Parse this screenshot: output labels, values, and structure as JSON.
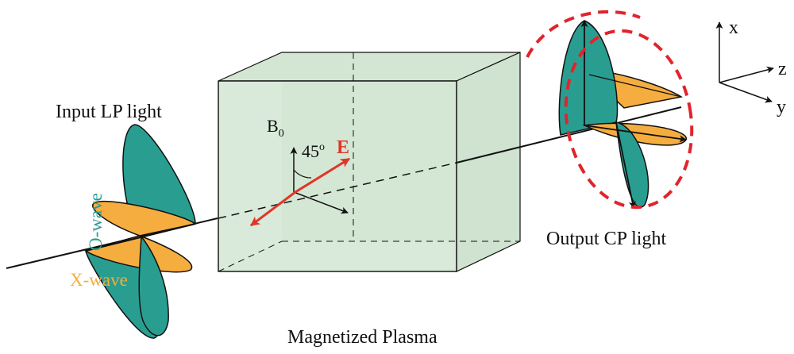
{
  "labels": {
    "input": "Input LP light",
    "output": "Output CP light",
    "plasma": "Magnetized Plasma",
    "o_wave": "O-wave",
    "x_wave": "X-wave",
    "b_field": "B",
    "b_sub": "0",
    "angle": "45",
    "angle_unit": "o",
    "e_field": "E",
    "axis_x": "x",
    "axis_y": "y",
    "axis_z": "z"
  },
  "colors": {
    "o_wave": "#2a9d91",
    "x_wave": "#f6ad3f",
    "plasma_fill": "#d3e6d4",
    "e_field": "#e0362a",
    "cp_circle": "#e0242c",
    "line": "#111111"
  }
}
